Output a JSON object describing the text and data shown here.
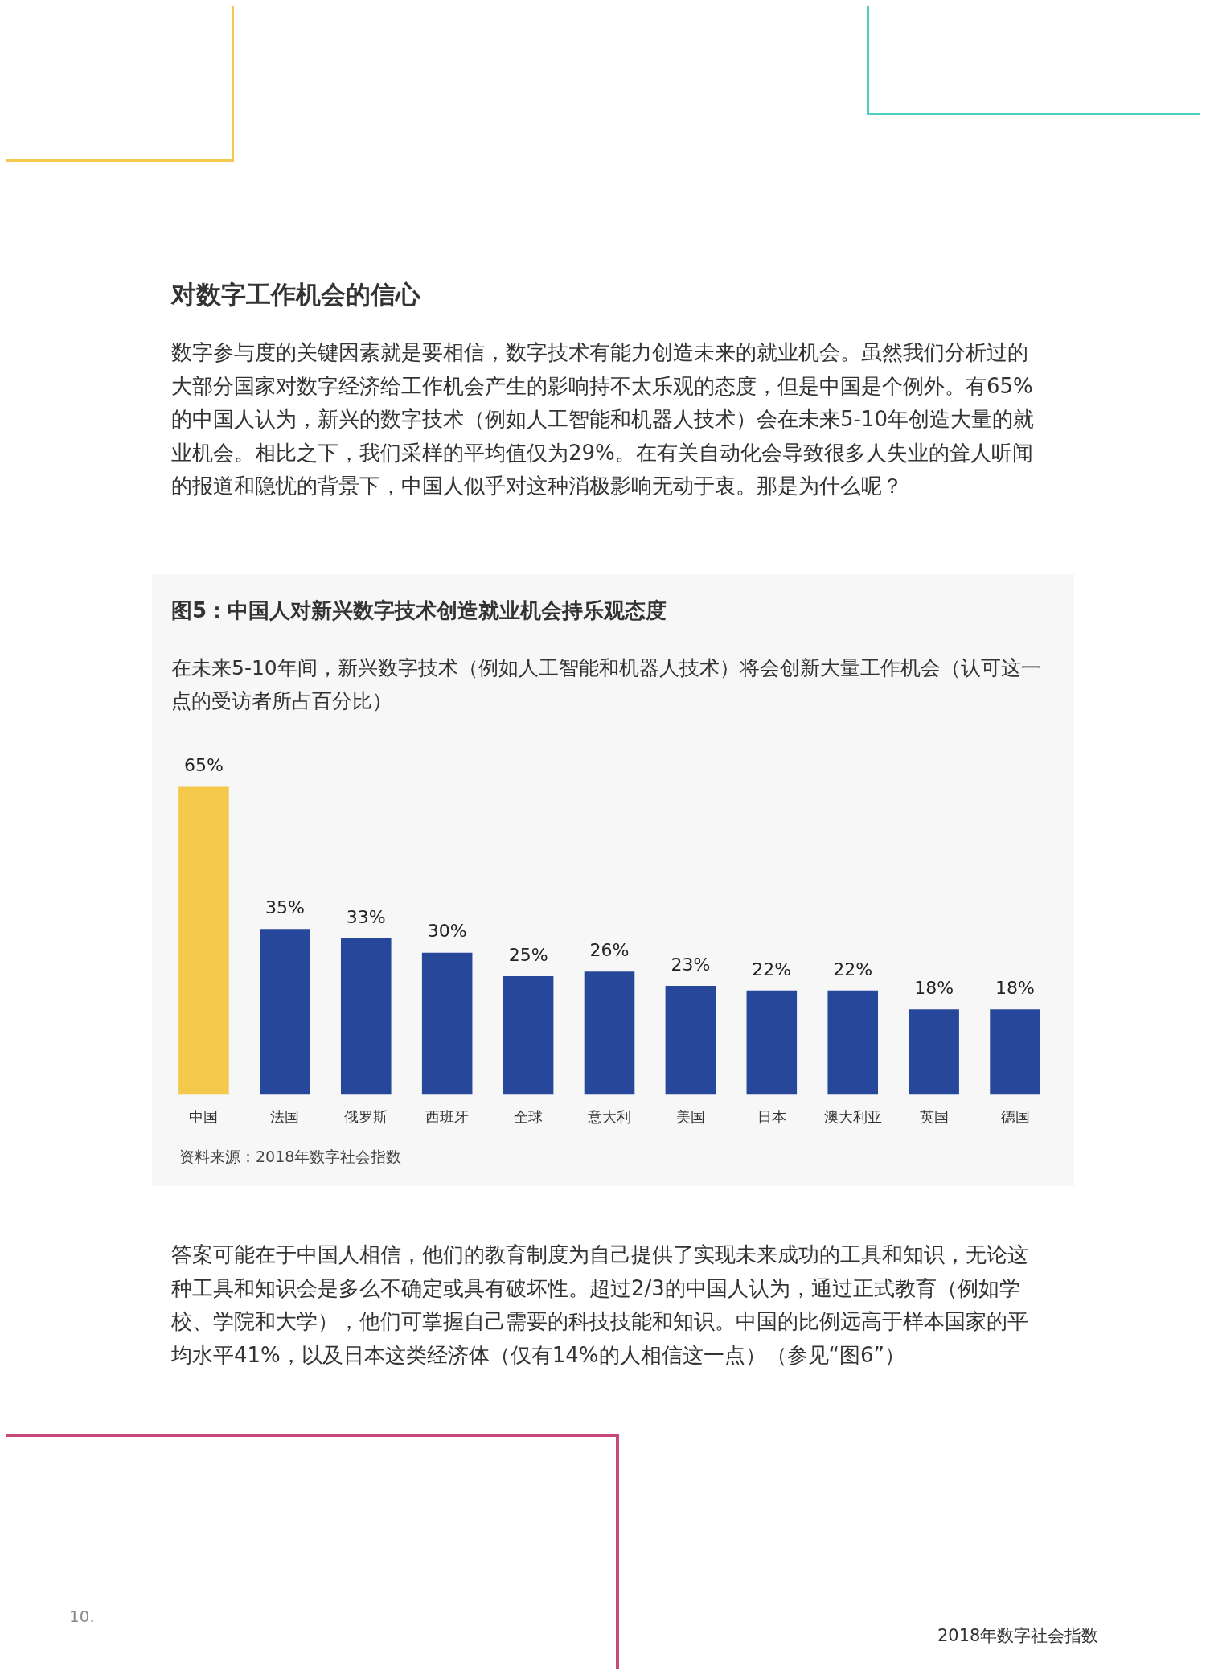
{
  "chart_data": {
    "type": "bar",
    "title": "图5：中国人对新兴数字技术创造就业机会持乐观态度",
    "subtitle": "在未来5-10年间，新兴数字技术（例如人工智能和机器人技术）将会创新大量工作机会（认可这一点的受访者所占百分比）",
    "categories": [
      "中国",
      "法国",
      "俄罗斯",
      "西班牙",
      "全球",
      "意大利",
      "美国",
      "日本",
      "澳大利亚",
      "英国",
      "德国"
    ],
    "values": [
      65,
      35,
      33,
      30,
      25,
      26,
      23,
      22,
      22,
      18,
      18
    ],
    "colors": [
      "#f4c84a",
      "#27479a",
      "#27479a",
      "#27479a",
      "#27479a",
      "#27479a",
      "#27479a",
      "#27479a",
      "#27479a",
      "#27479a",
      "#27479a"
    ],
    "value_labels": [
      "65%",
      "35%",
      "33%",
      "30%",
      "25%",
      "26%",
      "23%",
      "22%",
      "22%",
      "18%",
      "18%"
    ],
    "tick_labels": "x",
    "grid": false,
    "legend": false,
    "annotations": [
      "对数字工作机会的信心",
      "数字参与度的关键因素就是要相信，数字技术有能力创造未来的就业机会。虽然我们分析过的大部分国家对数字经济给工作机会产生的影响持不太乐观的态度，但是中国是个例外。有65%的中国人认为，新兴的数字技术（例如人工智能和机器人技术）会在未来5-10年创造大量的就业机会。相比之下，我们采样的平均值仅为29%。在有关自动化会导致很多人失业的耸人听闻的报道和隐忧的背景下，中国人似乎对这种消极影响无动于衷。那是为什么呢？",
      "资料来源：2018年数字社会指数",
      "答案可能在于中国人相信，他们的教育制度为自己提供了实现未来成功的工具和知识，无论这种工具和知识会是多么不确定或具有破坏性。超过2/3的中国人认为，通过正式教育（例如学校、学院和大学），他们可掌握自己需要的科技技能和知识。中国的比例远高于样本国家的平均水平41%，以及日本这类经济体（仅有14%的人相信这一点）（参见“图6”）",
      "10.",
      "2018年数字社会指数"
    ]
  }
}
